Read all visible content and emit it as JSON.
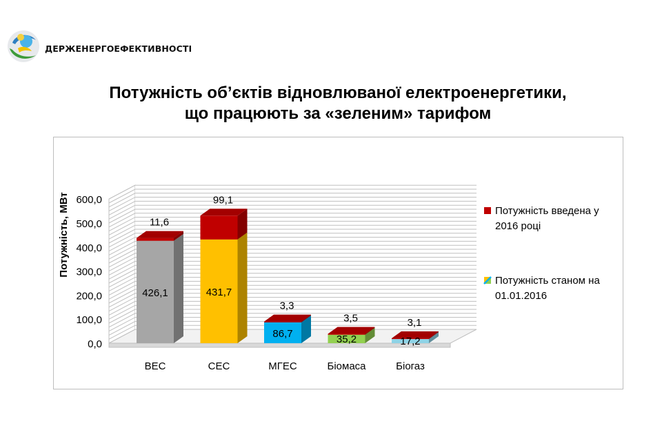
{
  "header": {
    "org_name": "ДЕРЖЕНЕРГОЕФЕКТИВНОСТІ",
    "logo_icon": "energy-efficiency-logo-icon"
  },
  "slide": {
    "title_line1": "Потужність об’єктів відновлюваної електроенергетики,",
    "title_line2": "що працюють за «зеленим» тарифом"
  },
  "colors": {
    "bes": "#a6a6a6",
    "ses": "#ffc000",
    "mges": "#00b0f0",
    "biomass": "#92d050",
    "biogas": "#8fd3e6",
    "added_2016": "#c00000",
    "grid": "#bfbfbf"
  },
  "chart_data": {
    "type": "bar",
    "stacked": true,
    "three_d": true,
    "categories": [
      "ВЕС",
      "СЕС",
      "МГЕС",
      "Біомаса",
      "Біогаз"
    ],
    "series": [
      {
        "name": "Потужність станом на 01.01.2016",
        "values": [
          426.1,
          431.7,
          86.7,
          35.2,
          17.2
        ],
        "labels": [
          "426,1",
          "431,7",
          "86,7",
          "35,2",
          "17,2"
        ],
        "colors": [
          "#a6a6a6",
          "#ffc000",
          "#00b0f0",
          "#92d050",
          "#8fd3e6"
        ]
      },
      {
        "name": "Потужність введена у 2016 році",
        "values": [
          11.6,
          99.1,
          3.3,
          3.5,
          3.1
        ],
        "labels": [
          "11,6",
          "99,1",
          "3,3",
          "3,5",
          "3,1"
        ],
        "colors": [
          "#c00000",
          "#c00000",
          "#c00000",
          "#c00000",
          "#c00000"
        ]
      }
    ],
    "ylabel": "Потужність, МВт",
    "ylim": [
      0,
      600
    ],
    "yticks": [
      "0,0",
      "100,0",
      "200,0",
      "300,0",
      "400,0",
      "500,0",
      "600,0"
    ],
    "grid": true,
    "legend_position": "right",
    "legend": [
      {
        "line1": "Потужність введена у",
        "line2": "2016 році",
        "icon": "red-square-icon"
      },
      {
        "line1": "Потужність станом на",
        "line2": "01.01.2016",
        "icon": "multicolor-square-icon"
      }
    ]
  }
}
